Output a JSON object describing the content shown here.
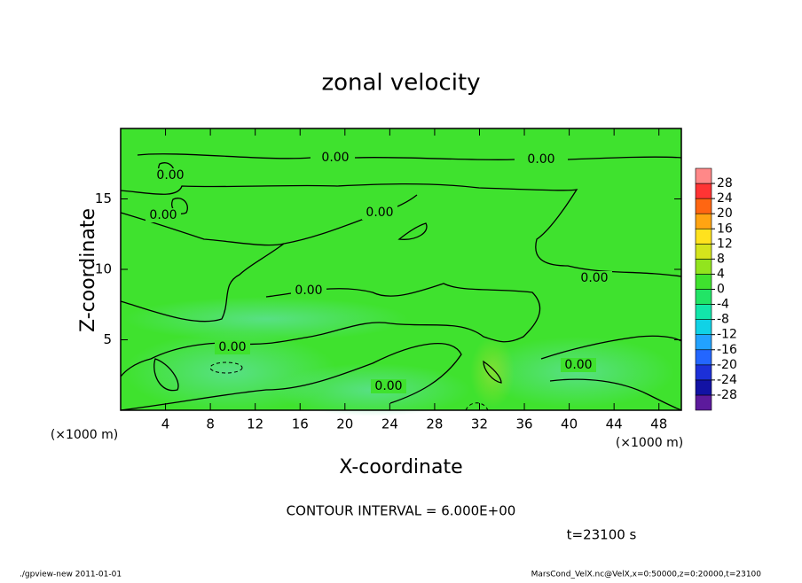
{
  "chart_data": {
    "type": "contour",
    "title": "zonal velocity",
    "x_label": "X-coordinate",
    "y_label": "Z-coordinate",
    "x_unit": "(×1000 m)",
    "y_unit": "(×1000 m)",
    "xlim": [
      0,
      50
    ],
    "xticks": [
      4,
      8,
      12,
      16,
      20,
      24,
      28,
      32,
      36,
      40,
      44,
      48
    ],
    "ylim": [
      0,
      20
    ],
    "yticks": [
      5,
      10,
      15
    ],
    "contour_label": {
      "value": 0,
      "label": "0.00"
    },
    "contour_interval": "CONTOUR INTERVAL = 6.000E+00",
    "time_label": "t=23100 s",
    "colorbar": {
      "clim": [
        -32,
        32
      ],
      "ticks": [
        28,
        24,
        20,
        16,
        12,
        8,
        4,
        0,
        -4,
        -8,
        -12,
        -16,
        -20,
        -24,
        -28
      ],
      "colors": [
        "#5c1a9c",
        "#1212a4",
        "#1c30d8",
        "#2366ff",
        "#22a2ff",
        "#10d2e6",
        "#12e6aa",
        "#22e466",
        "#3fe22e",
        "#92e41e",
        "#d4e41c",
        "#ffe21e",
        "#ffa412",
        "#ff6612",
        "#ff3434",
        "#ff8888"
      ]
    },
    "footer_left": "./gpview-new   2011-01-01",
    "footer_right": "MarsCond_VelX.nc@VelX,x=0:50000,z=0:20000,t=23100"
  }
}
